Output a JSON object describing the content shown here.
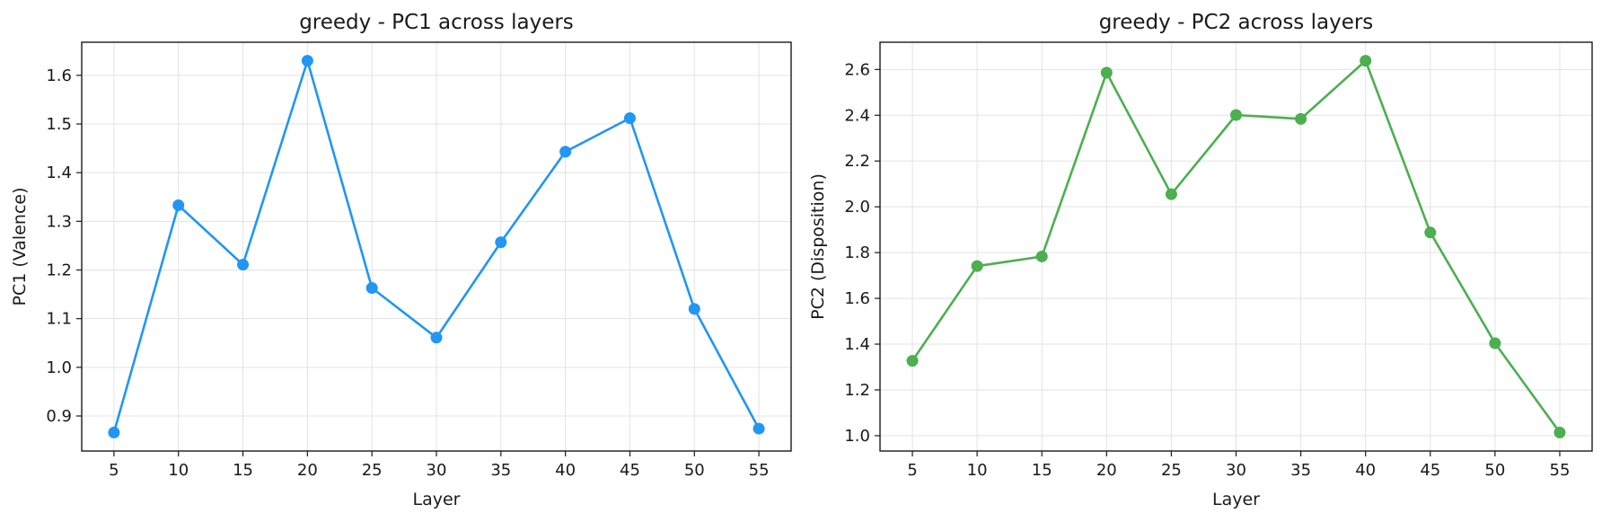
{
  "chart_data": [
    {
      "type": "line",
      "title": "greedy - PC1 across layers",
      "xlabel": "Layer",
      "ylabel": "PC1 (Valence)",
      "x": [
        5,
        10,
        15,
        20,
        25,
        30,
        35,
        40,
        45,
        50,
        55
      ],
      "series": [
        {
          "values": [
            0.866,
            1.333,
            1.211,
            1.63,
            1.163,
            1.061,
            1.257,
            1.443,
            1.512,
            1.12,
            0.874
          ],
          "color": "#2196f3",
          "marker": "circle"
        }
      ],
      "xticks": [
        5,
        10,
        15,
        20,
        25,
        30,
        35,
        40,
        45,
        50,
        55
      ],
      "yticks": [
        0.9,
        1.0,
        1.1,
        1.2,
        1.3,
        1.4,
        1.5,
        1.6
      ],
      "ytick_labels": [
        "0.9",
        "1.0",
        "1.1",
        "1.2",
        "1.3",
        "1.4",
        "1.5",
        "1.6"
      ],
      "xlim": [
        2.5,
        57.5
      ],
      "ylim": [
        0.828,
        1.668
      ],
      "grid": true
    },
    {
      "type": "line",
      "title": "greedy - PC2 across layers",
      "xlabel": "Layer",
      "ylabel": "PC2 (Disposition)",
      "x": [
        5,
        10,
        15,
        20,
        25,
        30,
        35,
        40,
        45,
        50,
        55
      ],
      "series": [
        {
          "values": [
            1.327,
            1.741,
            1.783,
            2.586,
            2.055,
            2.401,
            2.384,
            2.638,
            1.888,
            1.404,
            1.014
          ],
          "color": "#4caf50",
          "marker": "circle"
        }
      ],
      "xticks": [
        5,
        10,
        15,
        20,
        25,
        30,
        35,
        40,
        45,
        50,
        55
      ],
      "yticks": [
        1.0,
        1.2,
        1.4,
        1.6,
        1.8,
        2.0,
        2.2,
        2.4,
        2.6
      ],
      "ytick_labels": [
        "1.0",
        "1.2",
        "1.4",
        "1.6",
        "1.8",
        "2.0",
        "2.2",
        "2.4",
        "2.6"
      ],
      "xlim": [
        2.5,
        57.5
      ],
      "ylim": [
        0.933,
        2.719
      ],
      "grid": true
    }
  ]
}
